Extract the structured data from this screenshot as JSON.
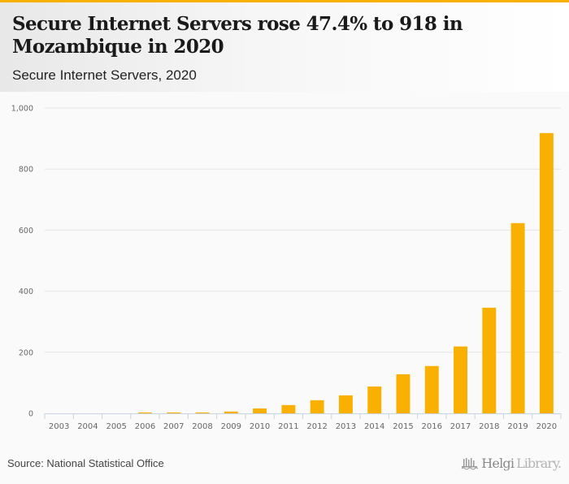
{
  "header": {
    "title": "Secure Internet Servers rose 47.4% to 918 in Mozambique in 2020",
    "subtitle": "Secure Internet Servers, 2020"
  },
  "footer": {
    "source": "Source: National Statistical Office",
    "logo_part1": "Helgi",
    "logo_part2": "Library."
  },
  "colors": {
    "accent": "#f9b000",
    "bar": "#f9b000",
    "grid": "#e4e4e4",
    "axis": "#c8d3e6"
  },
  "chart_data": {
    "type": "bar",
    "title": "Secure Internet Servers rose 47.4% to 918 in Mozambique in 2020",
    "subtitle": "Secure Internet Servers, 2020",
    "xlabel": "",
    "ylabel": "",
    "categories": [
      "2003",
      "2004",
      "2005",
      "2006",
      "2007",
      "2008",
      "2009",
      "2010",
      "2011",
      "2012",
      "2013",
      "2014",
      "2015",
      "2016",
      "2017",
      "2018",
      "2019",
      "2020"
    ],
    "values": [
      0,
      0,
      0,
      3,
      3,
      3,
      6,
      16,
      27,
      43,
      59,
      88,
      128,
      155,
      219,
      346,
      623,
      918
    ],
    "ylim": [
      0,
      1000
    ],
    "yticks": [
      0,
      200,
      400,
      600,
      800,
      1000
    ],
    "ytick_labels": [
      "0",
      "200",
      "400",
      "600",
      "800",
      "1,000"
    ],
    "grid": true,
    "legend": "none"
  }
}
